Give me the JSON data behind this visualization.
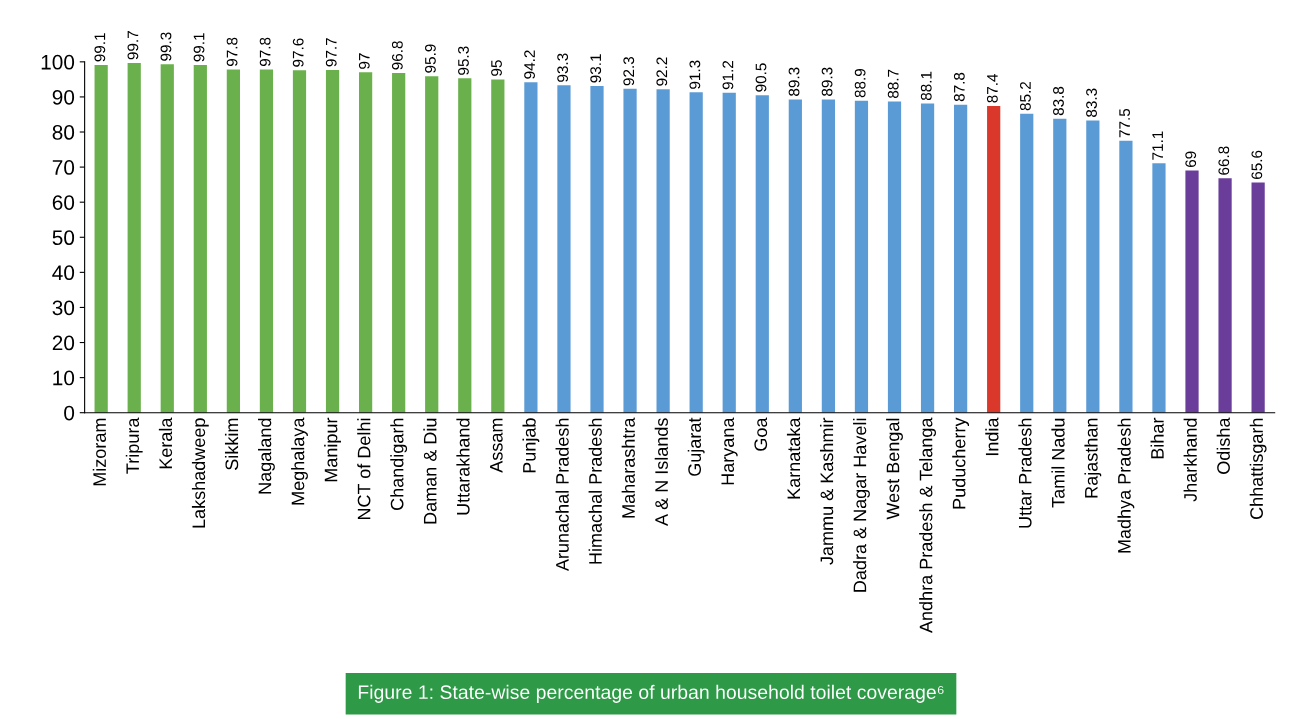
{
  "chart_data": {
    "type": "bar",
    "title": "Figure 1: State-wise percentage of urban household toilet coverage⁶",
    "categories": [
      "Mizoram",
      "Tripura",
      "Kerala",
      "Lakshadweep",
      "Sikkim",
      "Nagaland",
      "Meghalaya",
      "Manipur",
      "NCT of Delhi",
      "Chandigarh",
      "Daman & Diu",
      "Uttarakhand",
      "Assam",
      "Punjab",
      "Arunachal Pradesh",
      "Himachal Pradesh",
      "Maharashtra",
      "A & N Islands",
      "Gujarat",
      "Haryana",
      "Goa",
      "Karnataka",
      "Jammu & Kashmir",
      "Dadra & Nagar Haveli",
      "West Bengal",
      "Andhra Pradesh & Telanga",
      "Puducherry",
      "India",
      "Uttar Pradesh",
      "Tamil Nadu",
      "Rajasthan",
      "Madhya Pradesh",
      "Bihar",
      "Jharkhand",
      "Odisha",
      "Chhattisgarh"
    ],
    "values": [
      99.1,
      99.7,
      99.3,
      99.1,
      97.8,
      97.8,
      97.6,
      97.7,
      97,
      96.8,
      95.9,
      95.3,
      95,
      94.2,
      93.3,
      93.1,
      92.3,
      92.2,
      91.3,
      91.2,
      90.5,
      89.3,
      89.3,
      88.9,
      88.7,
      88.1,
      87.8,
      87.4,
      85.2,
      83.8,
      83.3,
      77.5,
      71.1,
      69,
      66.8,
      65.6
    ],
    "colors": [
      "#6ab04c",
      "#6ab04c",
      "#6ab04c",
      "#6ab04c",
      "#6ab04c",
      "#6ab04c",
      "#6ab04c",
      "#6ab04c",
      "#6ab04c",
      "#6ab04c",
      "#6ab04c",
      "#6ab04c",
      "#6ab04c",
      "#5b9bd5",
      "#5b9bd5",
      "#5b9bd5",
      "#5b9bd5",
      "#5b9bd5",
      "#5b9bd5",
      "#5b9bd5",
      "#5b9bd5",
      "#5b9bd5",
      "#5b9bd5",
      "#5b9bd5",
      "#5b9bd5",
      "#5b9bd5",
      "#5b9bd5",
      "#d9382a",
      "#5b9bd5",
      "#5b9bd5",
      "#5b9bd5",
      "#5b9bd5",
      "#5b9bd5",
      "#6a3d9a",
      "#6a3d9a",
      "#6a3d9a"
    ],
    "ylim": [
      0,
      100
    ],
    "yticks": [
      0,
      10,
      20,
      30,
      40,
      50,
      60,
      70,
      80,
      90,
      100
    ],
    "data_labels": true,
    "grid": false,
    "legend": false
  }
}
